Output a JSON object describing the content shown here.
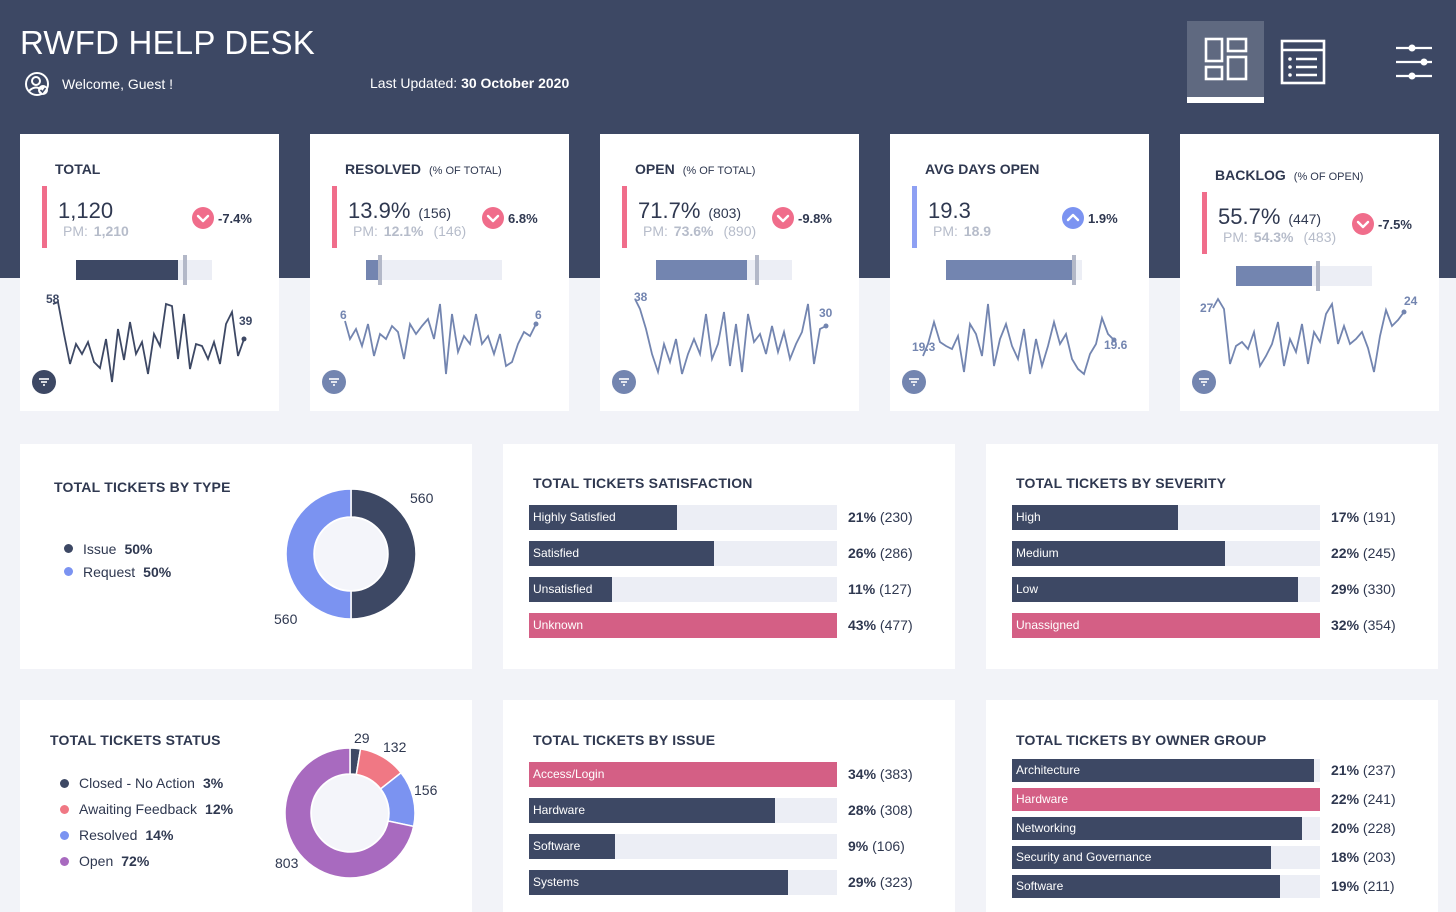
{
  "header": {
    "title": "RWFD HELP DESK",
    "welcome": "Welcome, Guest !",
    "last_updated_label": "Last Updated:",
    "last_updated_value": "30 October 2020",
    "nav_icons": [
      "dashboard-icon",
      "list-icon",
      "settings-sliders-icon"
    ]
  },
  "colors": {
    "navy": "#3d4864",
    "pink": "#d45f85",
    "blue": "#7b93f1",
    "slate": "#7385b0",
    "purple": "#a86abf",
    "salmon": "#f07884"
  },
  "kpis": [
    {
      "label": "TOTAL",
      "sub": "",
      "value": "1,120",
      "count": "",
      "pm_label": "PM:",
      "pm_value": "1,210",
      "pm_count": "",
      "change": "-7.4%",
      "direction": "down",
      "progress": 0.75,
      "target": 0.79,
      "spark_start": "58",
      "spark_end": "39"
    },
    {
      "label": "RESOLVED",
      "sub": "(% OF TOTAL)",
      "value": "13.9%",
      "count": "(156)",
      "pm_label": "PM:",
      "pm_value": "12.1%",
      "pm_count": "(146)",
      "change": "6.8%",
      "direction": "down",
      "progress": 0.1,
      "target": 0.09,
      "spark_start": "6",
      "spark_end": "6"
    },
    {
      "label": "OPEN",
      "sub": "(% OF TOTAL)",
      "value": "71.7%",
      "count": "(803)",
      "pm_label": "PM:",
      "pm_value": "73.6%",
      "pm_count": "(890)",
      "change": "-9.8%",
      "direction": "down",
      "progress": 0.67,
      "target": 0.73,
      "spark_start": "38",
      "spark_end": "30"
    },
    {
      "label": "AVG DAYS OPEN",
      "sub": "",
      "value": "19.3",
      "count": "",
      "pm_label": "PM:",
      "pm_value": "18.9",
      "pm_count": "",
      "change": "1.9%",
      "direction": "up",
      "progress": 0.95,
      "target": 0.93,
      "spark_start": "19.3",
      "spark_end": "19.6"
    },
    {
      "label": "BACKLOG",
      "sub": "(% OF OPEN)",
      "value": "55.7%",
      "count": "(447)",
      "pm_label": "PM:",
      "pm_value": "54.3%",
      "pm_count": "(483)",
      "change": "-7.5%",
      "direction": "down",
      "progress": 0.56,
      "target": 0.59,
      "spark_start": "27",
      "spark_end": "24"
    }
  ],
  "by_type": {
    "title": "TOTAL TICKETS BY TYPE",
    "legend": [
      {
        "name": "Issue",
        "pct": "50%",
        "color": "#3d4864"
      },
      {
        "name": "Request",
        "pct": "50%",
        "color": "#7b93f1"
      }
    ],
    "labels": [
      "560",
      "560"
    ],
    "values": [
      560,
      560
    ]
  },
  "satisfaction": {
    "title": "TOTAL TICKETS SATISFACTION",
    "rows": [
      {
        "label": "Highly Satisfied",
        "pct": "21%",
        "count": "(230)",
        "fraction": 0.48,
        "color": "#3d4864"
      },
      {
        "label": "Satisfied",
        "pct": "26%",
        "count": "(286)",
        "fraction": 0.6,
        "color": "#3d4864"
      },
      {
        "label": "Unsatisfied",
        "pct": "11%",
        "count": "(127)",
        "fraction": 0.27,
        "color": "#3d4864"
      },
      {
        "label": "Unknown",
        "pct": "43%",
        "count": "(477)",
        "fraction": 1.0,
        "color": "#d45f85"
      }
    ]
  },
  "severity": {
    "title": "TOTAL TICKETS BY SEVERITY",
    "rows": [
      {
        "label": "High",
        "pct": "17%",
        "count": "(191)",
        "fraction": 0.54,
        "color": "#3d4864"
      },
      {
        "label": "Medium",
        "pct": "22%",
        "count": "(245)",
        "fraction": 0.69,
        "color": "#3d4864"
      },
      {
        "label": "Low",
        "pct": "29%",
        "count": "(330)",
        "fraction": 0.93,
        "color": "#3d4864"
      },
      {
        "label": "Unassigned",
        "pct": "32%",
        "count": "(354)",
        "fraction": 1.0,
        "color": "#d45f85"
      }
    ]
  },
  "status": {
    "title": "TOTAL TICKETS STATUS",
    "legend": [
      {
        "name": "Closed - No Action",
        "pct": "3%",
        "color": "#3d4864"
      },
      {
        "name": "Awaiting Feedback",
        "pct": "12%",
        "color": "#f07884"
      },
      {
        "name": "Resolved",
        "pct": "14%",
        "color": "#7b93f1"
      },
      {
        "name": "Open",
        "pct": "72%",
        "color": "#a86abf"
      }
    ],
    "labels": [
      "29",
      "132",
      "156",
      "803"
    ],
    "values": [
      29,
      132,
      156,
      803
    ]
  },
  "by_issue": {
    "title": "TOTAL TICKETS BY ISSUE",
    "rows": [
      {
        "label": "Access/Login",
        "pct": "34%",
        "count": "(383)",
        "fraction": 1.0,
        "color": "#d45f85"
      },
      {
        "label": "Hardware",
        "pct": "28%",
        "count": "(308)",
        "fraction": 0.8,
        "color": "#3d4864"
      },
      {
        "label": "Software",
        "pct": "9%",
        "count": "(106)",
        "fraction": 0.28,
        "color": "#3d4864"
      },
      {
        "label": "Systems",
        "pct": "29%",
        "count": "(323)",
        "fraction": 0.84,
        "color": "#3d4864"
      }
    ]
  },
  "owner_group": {
    "title": "TOTAL TICKETS BY OWNER GROUP",
    "rows": [
      {
        "label": "Architecture",
        "pct": "21%",
        "count": "(237)",
        "fraction": 0.98,
        "color": "#3d4864"
      },
      {
        "label": "Hardware",
        "pct": "22%",
        "count": "(241)",
        "fraction": 1.0,
        "color": "#d45f85"
      },
      {
        "label": "Networking",
        "pct": "20%",
        "count": "(228)",
        "fraction": 0.94,
        "color": "#3d4864"
      },
      {
        "label": "Security and Governance",
        "pct": "18%",
        "count": "(203)",
        "fraction": 0.84,
        "color": "#3d4864"
      },
      {
        "label": "Software",
        "pct": "19%",
        "count": "(211)",
        "fraction": 0.87,
        "color": "#3d4864"
      }
    ]
  }
}
